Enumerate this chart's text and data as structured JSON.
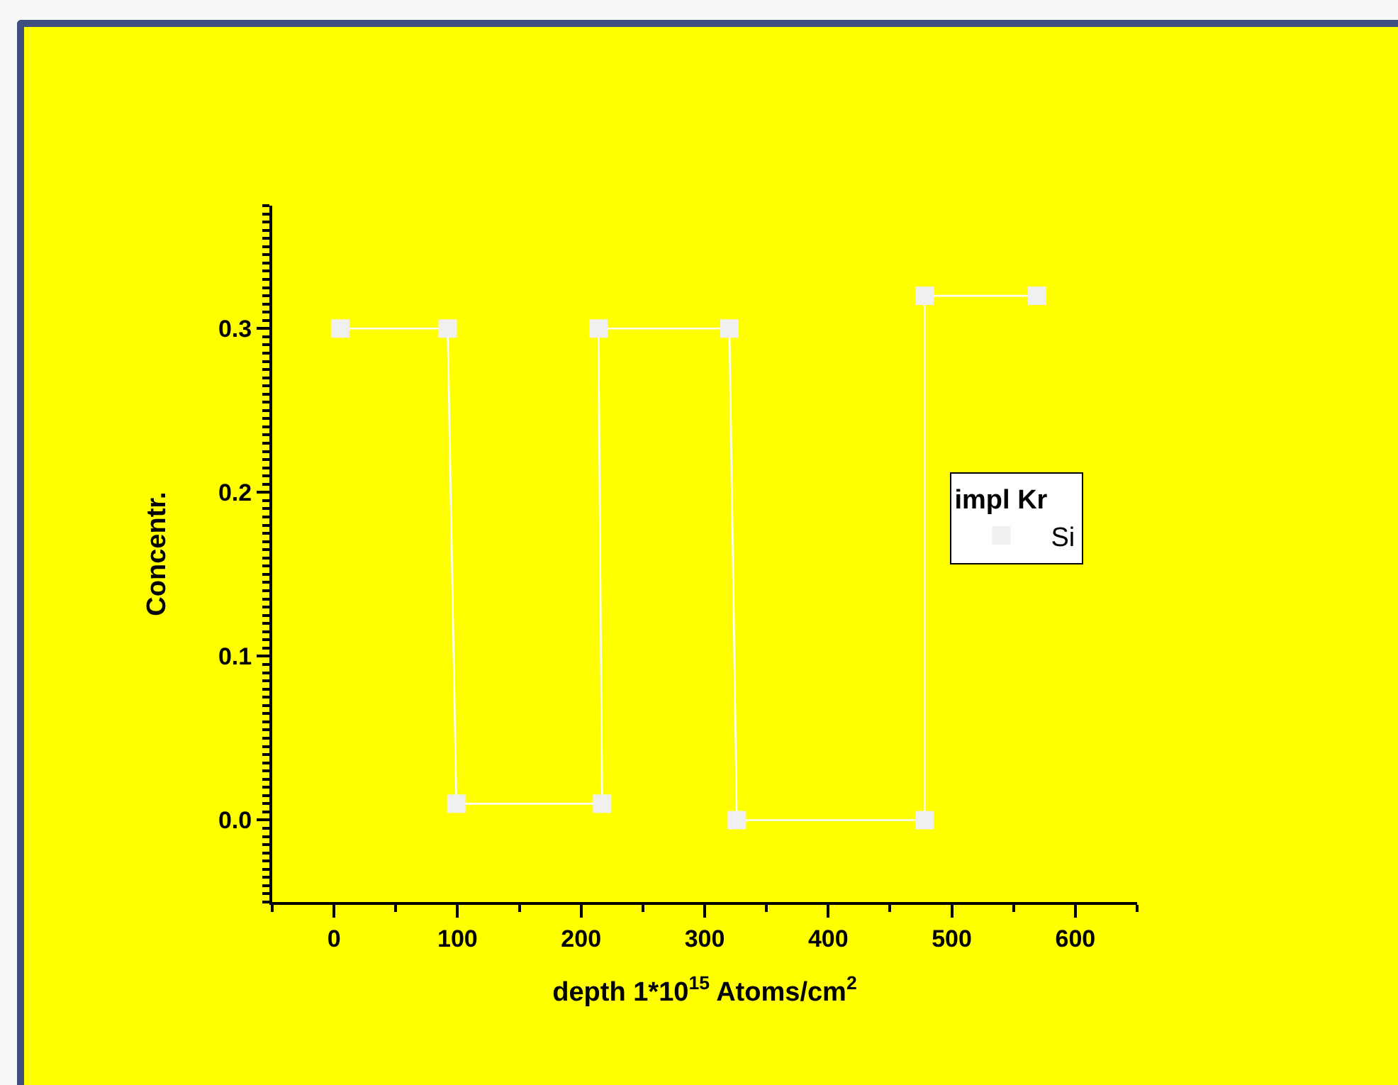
{
  "chart_data": {
    "type": "line",
    "xlabel": "depth 1*10$^{15}$ Atoms/cm$^{2}$",
    "ylabel": "Concentr.",
    "legend_title": "impl Kr",
    "xlim": [
      -50,
      650
    ],
    "xticks": [
      0,
      100,
      200,
      300,
      400,
      500,
      600
    ],
    "ylim": [
      -0.05,
      0.375
    ],
    "yticks": [
      {
        "value": 0,
        "label": "0.0"
      },
      {
        "value": 0.1,
        "label": "0.1"
      },
      {
        "value": 0.2,
        "label": "0.2"
      },
      {
        "value": 0.3,
        "label": "0.3"
      }
    ],
    "grid": false,
    "legend": "right",
    "marker": "square",
    "line_style": "solid",
    "series": [
      {
        "name": "Si",
        "color": "#f0f0f0",
        "x": [
          5,
          92,
          99,
          217,
          214,
          320,
          326,
          478,
          478,
          569
        ],
        "values": [
          0.3,
          0.3,
          0.01,
          0.01,
          0.3,
          0.3,
          0,
          0,
          0.32,
          0.32
        ]
      }
    ]
  }
}
